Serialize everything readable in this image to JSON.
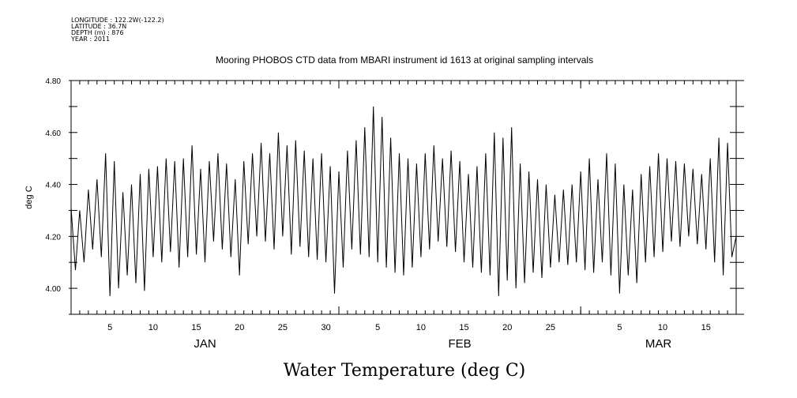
{
  "meta": {
    "longitude": "LONGITUDE : 122.2W(-122.2)",
    "latitude": "LATITUDE : 36.7N",
    "depth": "DEPTH (m) : 876",
    "year": "YEAR : 2011"
  },
  "chart_data": {
    "type": "line",
    "title": "Mooring PHOBOS CTD data from MBARI instrument id 1613 at original sampling intervals",
    "xlabel": "Water Temperature (deg C)",
    "ylabel": "deg C",
    "ylim": [
      3.9,
      4.8
    ],
    "yticks": [
      "4.00",
      "4.20",
      "4.40",
      "4.60",
      "4.80"
    ],
    "xlim_days": [
      0,
      77
    ],
    "x_step_days": 0.5,
    "months": [
      {
        "label": "JAN",
        "start_day": 0,
        "days": 31,
        "ticks": [
          "5",
          "10",
          "15",
          "20",
          "25",
          "30"
        ]
      },
      {
        "label": "FEB",
        "start_day": 31,
        "days": 28,
        "ticks": [
          "5",
          "10",
          "15",
          "20",
          "25"
        ]
      },
      {
        "label": "MAR",
        "start_day": 59,
        "days": 18,
        "ticks": [
          "5",
          "10",
          "15"
        ]
      }
    ],
    "values": [
      4.31,
      4.07,
      4.3,
      4.1,
      4.38,
      4.15,
      4.42,
      4.12,
      4.52,
      3.97,
      4.49,
      4.0,
      4.37,
      4.05,
      4.4,
      4.02,
      4.44,
      3.99,
      4.46,
      4.12,
      4.47,
      4.1,
      4.5,
      4.14,
      4.49,
      4.08,
      4.5,
      4.12,
      4.55,
      4.13,
      4.46,
      4.1,
      4.49,
      4.18,
      4.52,
      4.15,
      4.48,
      4.12,
      4.42,
      4.05,
      4.49,
      4.17,
      4.52,
      4.2,
      4.56,
      4.18,
      4.52,
      4.15,
      4.6,
      4.2,
      4.55,
      4.13,
      4.57,
      4.16,
      4.53,
      4.12,
      4.5,
      4.11,
      4.52,
      4.1,
      4.47,
      3.98,
      4.45,
      4.08,
      4.53,
      4.15,
      4.57,
      4.13,
      4.62,
      4.12,
      4.7,
      4.1,
      4.66,
      4.08,
      4.58,
      4.06,
      4.52,
      4.05,
      4.5,
      4.08,
      4.48,
      4.12,
      4.52,
      4.15,
      4.55,
      4.18,
      4.5,
      4.16,
      4.53,
      4.14,
      4.49,
      4.1,
      4.44,
      4.08,
      4.47,
      4.06,
      4.52,
      4.05,
      4.6,
      3.97,
      4.58,
      4.03,
      4.62,
      4.0,
      4.48,
      4.02,
      4.45,
      4.06,
      4.42,
      4.04,
      4.4,
      4.08,
      4.36,
      4.1,
      4.38,
      4.09,
      4.4,
      4.1,
      4.45,
      4.07,
      4.5,
      4.06,
      4.42,
      4.1,
      4.52,
      4.05,
      4.48,
      3.98,
      4.4,
      4.05,
      4.38,
      4.02,
      4.44,
      4.1,
      4.47,
      4.12,
      4.52,
      4.14,
      4.5,
      4.18,
      4.49,
      4.16,
      4.48,
      4.2,
      4.46,
      4.17,
      4.44,
      4.15,
      4.5,
      4.1,
      4.58,
      4.05,
      4.56,
      4.12,
      4.2
    ]
  }
}
